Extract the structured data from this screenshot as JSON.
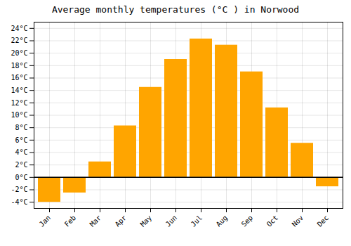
{
  "chart_data": {
    "type": "bar",
    "title": "Average monthly temperatures (°C ) in Norwood",
    "categories": [
      "Jan",
      "Feb",
      "Mar",
      "Apr",
      "May",
      "Jun",
      "Jul",
      "Aug",
      "Sep",
      "Oct",
      "Nov",
      "Dec"
    ],
    "values": [
      -4.0,
      -2.5,
      2.5,
      8.3,
      14.5,
      19.0,
      22.3,
      21.3,
      17.0,
      11.2,
      5.5,
      -1.5
    ],
    "color": "#FFA500",
    "ylim": [
      -5,
      25
    ],
    "yticks": [
      {
        "value": -4,
        "label": "-4°C"
      },
      {
        "value": -2,
        "label": "-2°C"
      },
      {
        "value": 0,
        "label": "0°C"
      },
      {
        "value": 2,
        "label": "2°C"
      },
      {
        "value": 4,
        "label": "4°C"
      },
      {
        "value": 6,
        "label": "6°C"
      },
      {
        "value": 8,
        "label": "8°C"
      },
      {
        "value": 10,
        "label": "10°C"
      },
      {
        "value": 12,
        "label": "12°C"
      },
      {
        "value": 14,
        "label": "14°C"
      },
      {
        "value": 16,
        "label": "16°C"
      },
      {
        "value": 18,
        "label": "18°C"
      },
      {
        "value": 20,
        "label": "20°C"
      },
      {
        "value": 22,
        "label": "22°C"
      },
      {
        "value": 24,
        "label": "24°C"
      }
    ],
    "grid": true
  }
}
